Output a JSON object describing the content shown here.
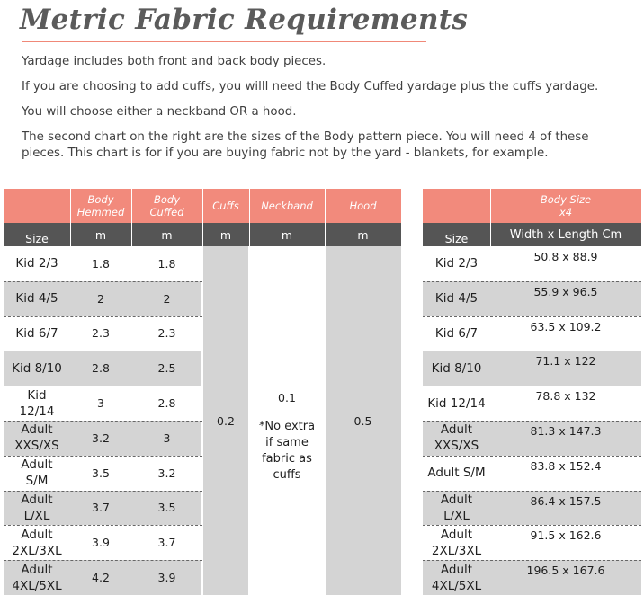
{
  "title": "Metric Fabric Requirements",
  "paragraphs": [
    "Yardage includes both front and back body pieces.",
    "If you are choosing to add cuffs, you willl need the Body Cuffed yardage plus the cuffs yardage.",
    "You will choose either a neckband OR a hood.",
    "The second chart on the right are the sizes of the Body pattern piece. You will need 4 of these pieces. This chart is for if you are buying fabric not by the yard - blankets, for example."
  ],
  "left_table": {
    "headers": [
      "",
      "Body Hemmed",
      "Body Cuffed",
      "Cuffs",
      "Neckband",
      "Hood"
    ],
    "units": [
      "Size",
      "m",
      "m",
      "m",
      "m",
      "m"
    ],
    "rows": [
      {
        "size": "Kid 2/3",
        "hemmed": "1.8",
        "cuffed": "1.8"
      },
      {
        "size": "Kid 4/5",
        "hemmed": "2",
        "cuffed": "2"
      },
      {
        "size": "Kid 6/7",
        "hemmed": "2.3",
        "cuffed": "2.3"
      },
      {
        "size": "Kid 8/10",
        "hemmed": "2.8",
        "cuffed": "2.5"
      },
      {
        "size": "Kid 12/14",
        "hemmed": "3",
        "cuffed": "2.8"
      },
      {
        "size": "Adult XXS/XS",
        "hemmed": "3.2",
        "cuffed": "3"
      },
      {
        "size": "Adult S/M",
        "hemmed": "3.5",
        "cuffed": "3.2"
      },
      {
        "size": "Adult L/XL",
        "hemmed": "3.7",
        "cuffed": "3.5"
      },
      {
        "size": "Adult 2XL/3XL",
        "hemmed": "3.9",
        "cuffed": "3.7"
      },
      {
        "size": "Adult 4XL/5XL",
        "hemmed": "4.2",
        "cuffed": "3.9"
      }
    ],
    "cuffs_value": "0.2",
    "neckband_value": "0.1",
    "neckband_note": "*No extra if same fabric as cuffs",
    "hood_value": "0.5"
  },
  "right_table": {
    "header_line1": "Body Size",
    "header_line2": "x4",
    "unit_size": "Size",
    "unit_dims": "Width x Length Cm",
    "rows": [
      {
        "size": "Kid 2/3",
        "dims": "50.8 x 88.9"
      },
      {
        "size": "Kid 4/5",
        "dims": "55.9 x 96.5"
      },
      {
        "size": "Kid 6/7",
        "dims": "63.5 x 109.2"
      },
      {
        "size": "Kid 8/10",
        "dims": "71.1 x 122"
      },
      {
        "size": "Kid 12/14",
        "dims": "78.8 x 132"
      },
      {
        "size": "Adult XXS/XS",
        "dims": "81.3 x 147.3"
      },
      {
        "size": "Adult S/M",
        "dims": "83.8 x 152.4"
      },
      {
        "size": "Adult L/XL",
        "dims": "86.4 x 157.5"
      },
      {
        "size": "Adult 2XL/3XL",
        "dims": "91.5 x 162.6"
      },
      {
        "size": "Adult 4XL/5XL",
        "dims": "196.5 x 167.6"
      }
    ]
  }
}
